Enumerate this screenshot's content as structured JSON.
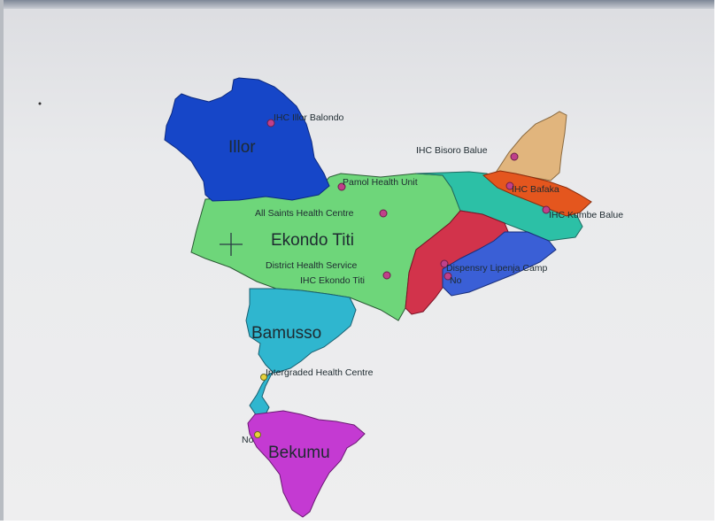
{
  "map": {
    "colors": {
      "illor": "#1646c8",
      "ekondo_titi": "#6ed67a",
      "bamusso": "#2fb6cf",
      "bekumu": "#c43ad2",
      "teal_east": "#2cc0a6",
      "red": "#d2334b",
      "blue_east": "#3a5fd6",
      "bafaka": "#e4561e",
      "bisoro": "#e1b57d",
      "facility_marker": "#c0408a",
      "facility_marker_alt": "#e6d23a"
    },
    "regions": {
      "illor": "Illor",
      "ekondo_titi": "Ekondo Titi",
      "bamusso": "Bamusso",
      "bekumu": "Bekumu"
    },
    "facilities": {
      "ihc_illor_balondo": "IHC   Illor Balondo",
      "ihc_bisoro_balue": "IHC   Bisoro Balue",
      "pamol_health_unit": "Pamol Health Unit",
      "ihc_bafaka": "IHC   Bafaka",
      "all_saints": "All Saints Health Centre",
      "ihc_kumbe_balue": "IHC   Kumbe Balue",
      "district_health_service": "District Health Service",
      "dispensary_lipenja": "Dispensry Lipenja Camp",
      "ihc_ekondo_titi": "IHC   Ekondo Titi",
      "no_1": "No",
      "intergraded_health_centre": "Intergraded Health Centre",
      "no_2": "No"
    }
  }
}
